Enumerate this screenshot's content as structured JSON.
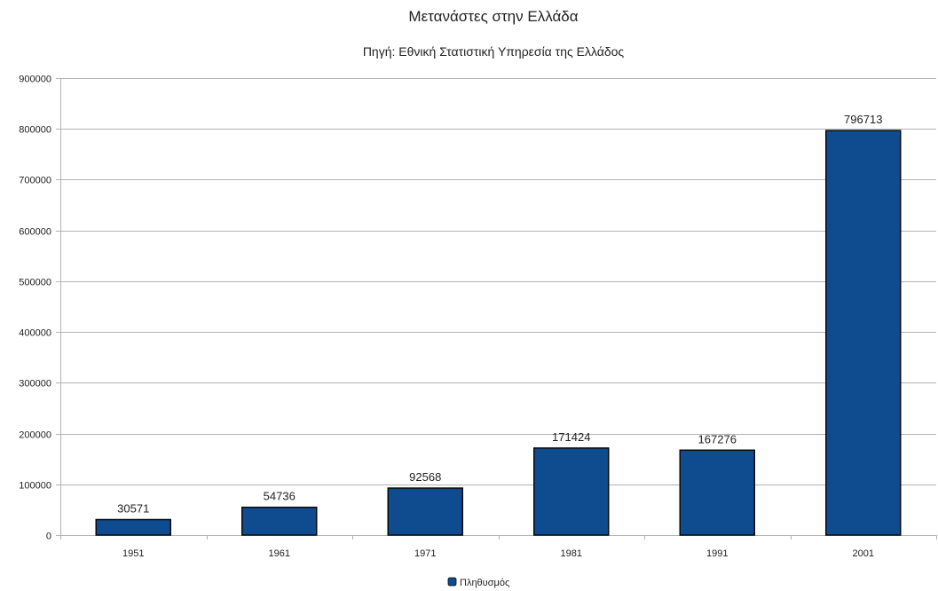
{
  "chart_data": {
    "type": "bar",
    "title": "Μετανάστες στην Ελλάδα",
    "subtitle": "Πηγή: Εθνική Στατιστική Υπηρεσία της Ελλάδος",
    "xlabel": "",
    "ylabel": "",
    "categories": [
      "1951",
      "1961",
      "1971",
      "1981",
      "1991",
      "2001"
    ],
    "series": [
      {
        "name": "Πληθυσμός",
        "values": [
          30571,
          54736,
          92568,
          171424,
          167276,
          796713
        ]
      }
    ],
    "ylim": [
      0,
      900000
    ],
    "yticks": [
      0,
      100000,
      200000,
      300000,
      400000,
      500000,
      600000,
      700000,
      800000,
      900000
    ],
    "ytick_labels": [
      "0",
      "100000",
      "200000",
      "300000",
      "400000",
      "500000",
      "600000",
      "700000",
      "800000",
      "900000"
    ],
    "grid": true,
    "legend_position": "bottom",
    "data_labels": true,
    "colors": {
      "bar": "#0f4c8f",
      "bar_edge": "#0a0a0a",
      "grid": "#b3b3b3",
      "axis": "#b3b3b3"
    }
  }
}
